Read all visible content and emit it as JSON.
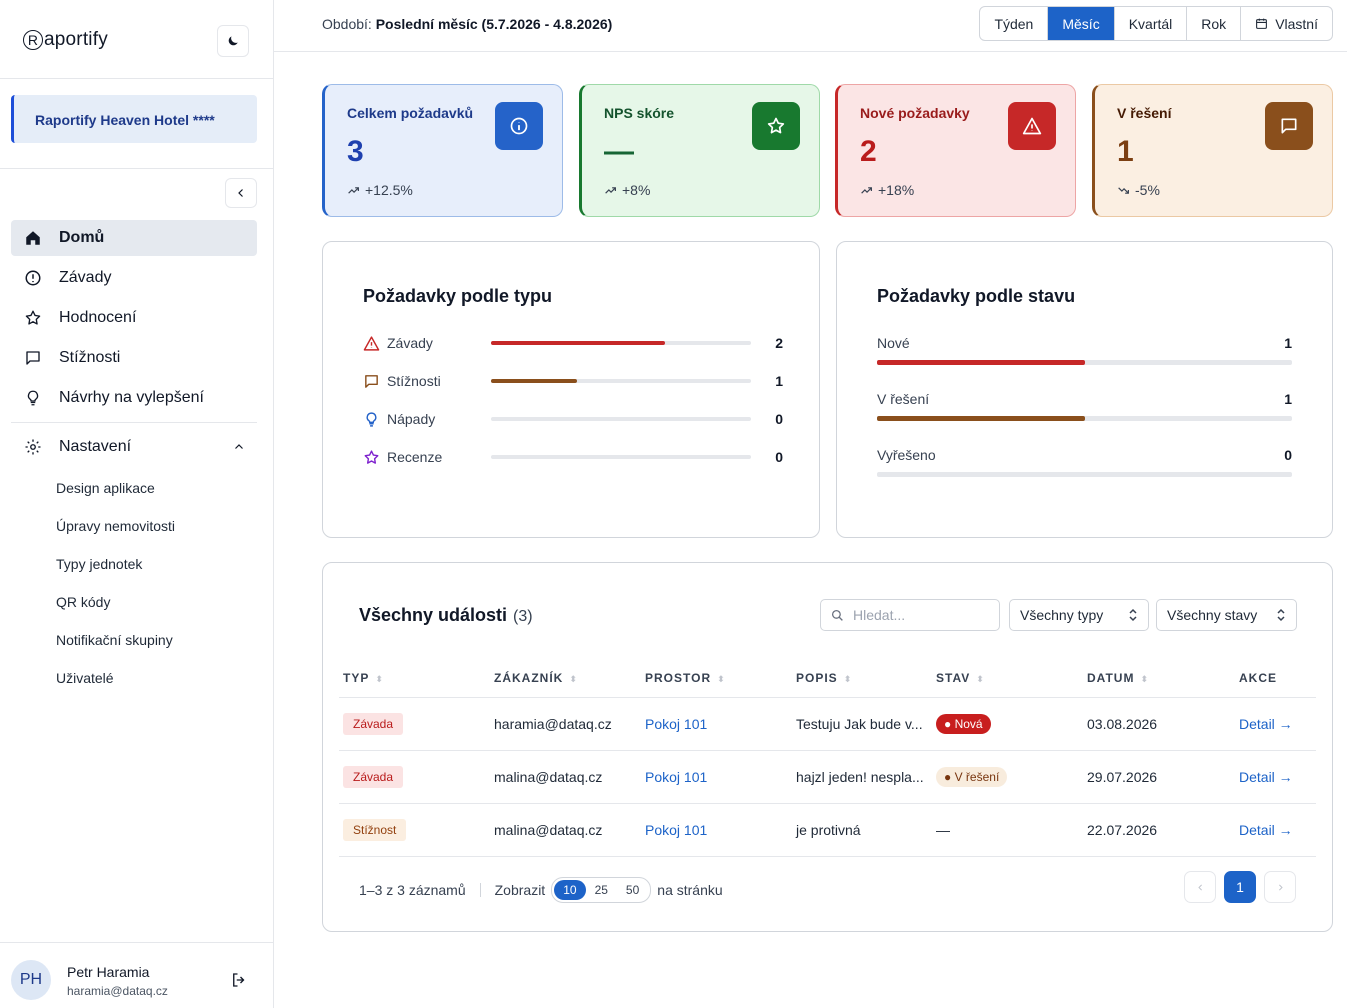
{
  "app": {
    "logo_initial": "R",
    "logo_rest": "aportify"
  },
  "sidebar": {
    "hotel": "Raportify Heaven Hotel ****",
    "nav": [
      {
        "label": "Domů",
        "icon": "home-icon",
        "active": true
      },
      {
        "label": "Závady",
        "icon": "alert-circle-icon"
      },
      {
        "label": "Hodnocení",
        "icon": "star-icon"
      },
      {
        "label": "Stížnosti",
        "icon": "message-square-icon"
      },
      {
        "label": "Návrhy na vylepšení",
        "icon": "lightbulb-icon"
      }
    ],
    "settings": {
      "label": "Nastavení",
      "icon": "gear-icon",
      "items": [
        "Design aplikace",
        "Úpravy nemovitosti",
        "Typy jednotek",
        "QR kódy",
        "Notifikační skupiny",
        "Uživatelé"
      ]
    },
    "user": {
      "initials": "PH",
      "name": "Petr Haramia",
      "email": "haramia@dataq.cz"
    }
  },
  "header": {
    "period_label": "Období:",
    "period_value": "Poslední měsíc (5.7.2026 - 4.8.2026)",
    "ranges": [
      "Týden",
      "Měsíc",
      "Kvartál",
      "Rok"
    ],
    "active_range": "Měsíc",
    "custom_label": "Vlastní"
  },
  "kpis": [
    {
      "label": "Celkem požadavků",
      "value": "3",
      "trend": "+12.5%",
      "icon": "info-icon",
      "color": "#2563c9"
    },
    {
      "label": "NPS skóre",
      "value": "—",
      "trend": "+8%",
      "icon": "star-icon",
      "color": "#18792f"
    },
    {
      "label": "Nové požadavky",
      "value": "2",
      "trend": "+18%",
      "icon": "warning-triangle-icon",
      "color": "#c62828"
    },
    {
      "label": "V řešení",
      "value": "1",
      "trend": "-5%",
      "icon": "message-square-icon",
      "color": "#8a4f1c"
    }
  ],
  "by_type": {
    "title": "Požadavky podle typu",
    "rows": [
      {
        "label": "Závady",
        "value": 2,
        "fraction": 0.67,
        "color": "#c62828",
        "icon": "warning-triangle-icon"
      },
      {
        "label": "Stížnosti",
        "value": 1,
        "fraction": 0.33,
        "color": "#8a4f1c",
        "icon": "message-square-icon"
      },
      {
        "label": "Nápady",
        "value": 0,
        "fraction": 0,
        "color": "#2563c9",
        "icon": "lightbulb-icon"
      },
      {
        "label": "Recenze",
        "value": 0,
        "fraction": 0,
        "color": "#7e22ce",
        "icon": "star-icon"
      }
    ]
  },
  "by_status": {
    "title": "Požadavky podle stavu",
    "rows": [
      {
        "label": "Nové",
        "value": 1,
        "fraction": 0.5,
        "color": "#c62828"
      },
      {
        "label": "V řešení",
        "value": 1,
        "fraction": 0.5,
        "color": "#8a4f1c"
      },
      {
        "label": "Vyřešeno",
        "value": 0,
        "fraction": 0,
        "color": "#16a34a"
      }
    ]
  },
  "events": {
    "title": "Všechny události",
    "count": "(3)",
    "search_placeholder": "Hledat...",
    "type_filter": "Všechny typy",
    "status_filter": "Všechny stavy",
    "columns": [
      "TYP",
      "ZÁKAZNÍK",
      "PROSTOR",
      "POPIS",
      "STAV",
      "DATUM",
      "AKCE"
    ],
    "rows": [
      {
        "type": "Závada",
        "type_kind": "z",
        "customer": "haramia@dataq.cz",
        "space": "Pokoj 101",
        "desc": "Testuju Jak bude v...",
        "status": "Nová",
        "status_kind": "n",
        "date": "03.08.2026",
        "action": "Detail →"
      },
      {
        "type": "Závada",
        "type_kind": "z",
        "customer": "malina@dataq.cz",
        "space": "Pokoj 101",
        "desc": "hajzl jeden! nespla...",
        "status": "V řešení",
        "status_kind": "r",
        "date": "29.07.2026",
        "action": "Detail →"
      },
      {
        "type": "Stížnost",
        "type_kind": "s",
        "customer": "malina@dataq.cz",
        "space": "Pokoj 101",
        "desc": "je protivná",
        "status": "—",
        "status_kind": "none",
        "date": "22.07.2026",
        "action": "Detail →"
      }
    ],
    "footer": {
      "records": "1–3 z 3 záznamů",
      "show": "Zobrazit",
      "page_sizes": [
        "10",
        "25",
        "50"
      ],
      "page_size_active": "10",
      "per_page": "na stránku",
      "page": "1"
    }
  }
}
